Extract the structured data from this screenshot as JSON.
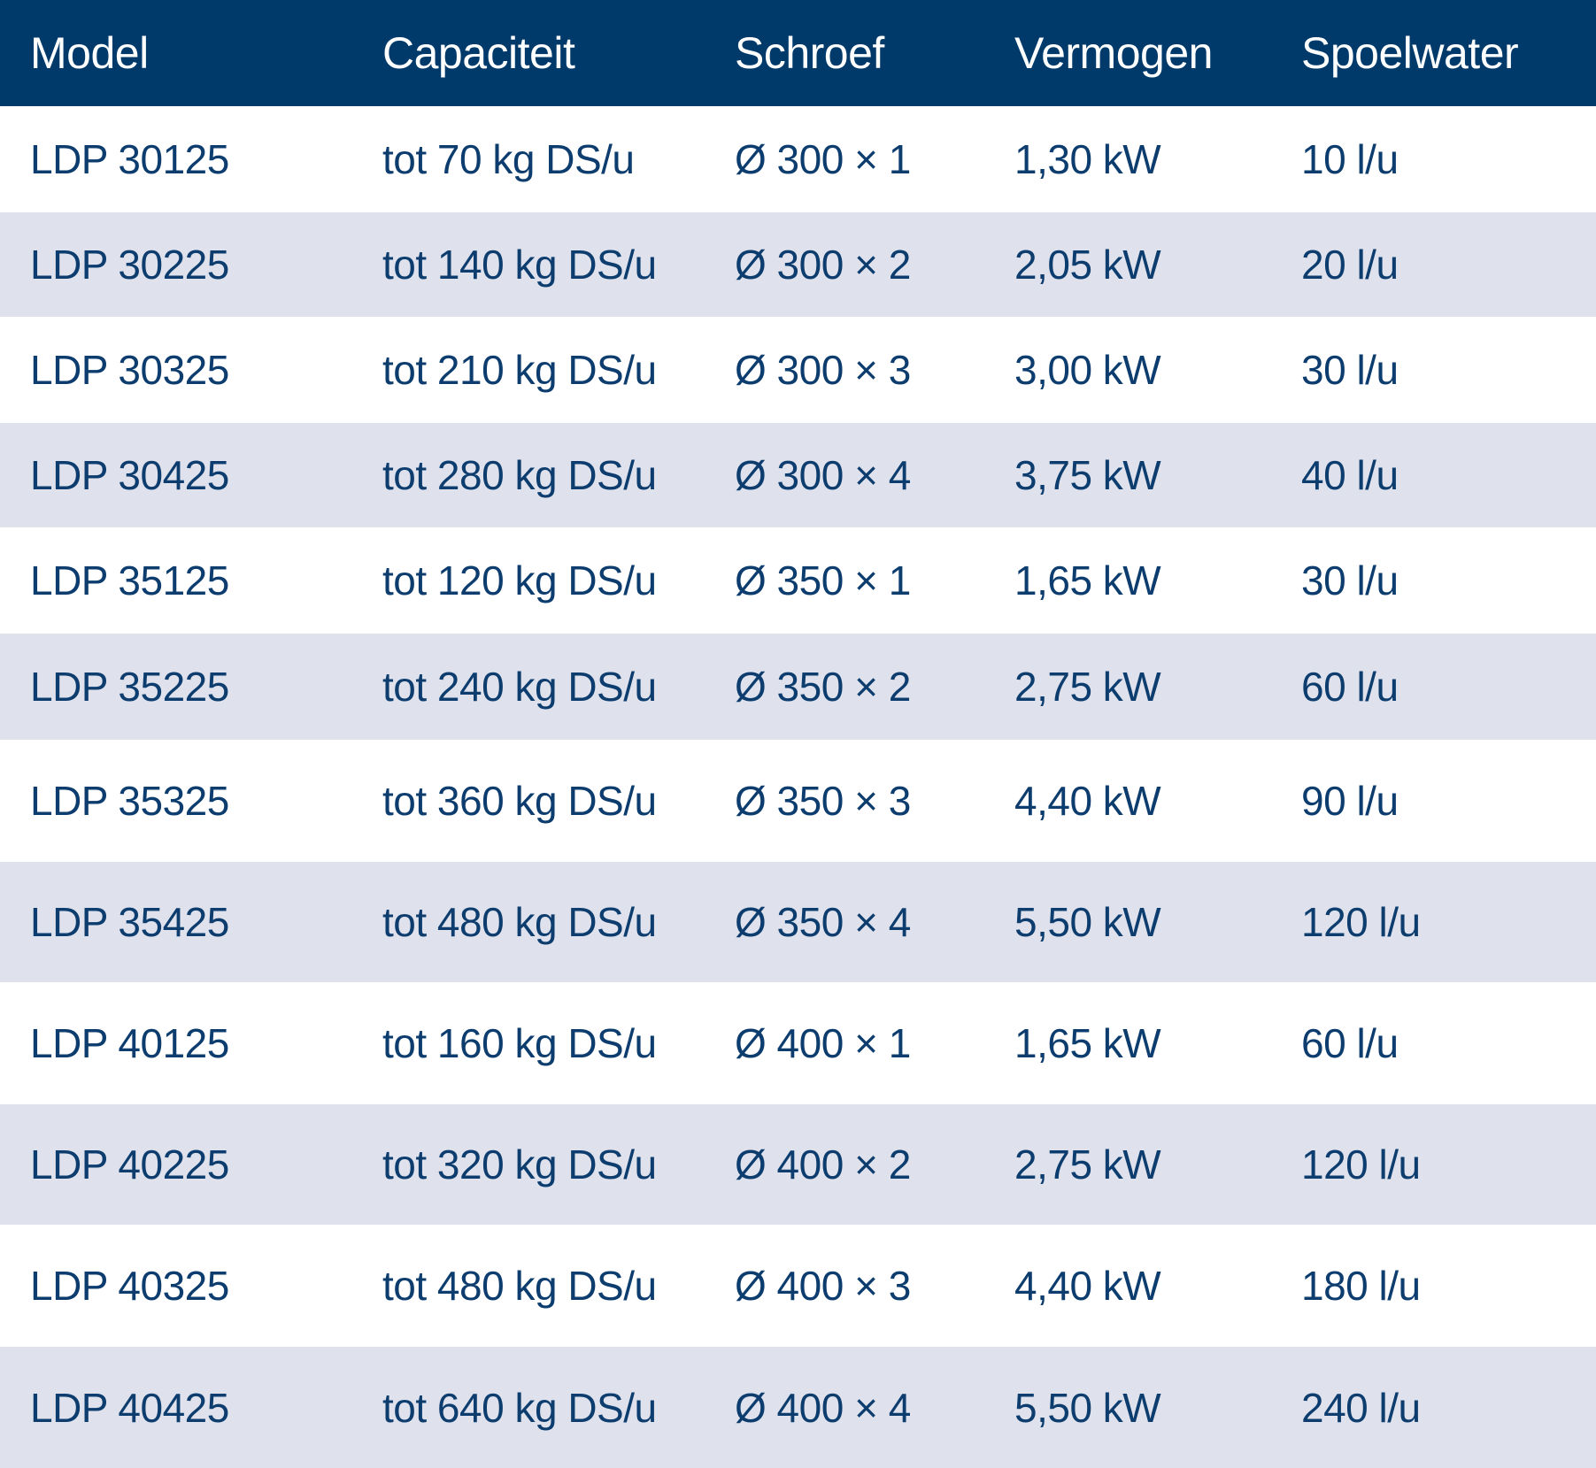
{
  "table": {
    "headers": [
      "Model",
      "Capaciteit",
      "Schroef",
      "Vermogen",
      "Spoelwater"
    ],
    "rows": [
      [
        "LDP 30125",
        "tot 70 kg DS/u",
        "Ø 300 × 1",
        "1,30 kW",
        "10 l/u"
      ],
      [
        "LDP 30225",
        "tot 140 kg DS/u",
        "Ø 300 × 2",
        "2,05 kW",
        "20 l/u"
      ],
      [
        "LDP 30325",
        "tot 210 kg DS/u",
        "Ø 300 × 3",
        "3,00 kW",
        "30 l/u"
      ],
      [
        "LDP 30425",
        "tot 280 kg DS/u",
        "Ø 300 × 4",
        "3,75 kW",
        "40 l/u"
      ],
      [
        "LDP 35125",
        "tot 120 kg DS/u",
        "Ø 350 × 1",
        "1,65 kW",
        "30 l/u"
      ],
      [
        "LDP 35225",
        "tot 240 kg DS/u",
        "Ø 350 × 2",
        "2,75 kW",
        "60 l/u"
      ],
      [
        "LDP 35325",
        "tot 360 kg DS/u",
        "Ø 350 × 3",
        "4,40 kW",
        "90 l/u"
      ],
      [
        "LDP 35425",
        "tot 480 kg DS/u",
        "Ø 350 × 4",
        "5,50 kW",
        "120 l/u"
      ],
      [
        "LDP 40125",
        "tot 160 kg DS/u",
        "Ø 400 × 1",
        "1,65 kW",
        "60 l/u"
      ],
      [
        "LDP 40225",
        "tot 320 kg DS/u",
        "Ø 400 × 2",
        "2,75 kW",
        "120 l/u"
      ],
      [
        "LDP 40325",
        "tot 480 kg DS/u",
        "Ø 400 × 3",
        "4,40 kW",
        "180 l/u"
      ],
      [
        "LDP 40425",
        "tot 640 kg DS/u",
        "Ø 400 × 4",
        "5,50 kW",
        "240 l/u"
      ]
    ]
  },
  "colors": {
    "header_background": "#003a6b",
    "header_text": "#ffffff",
    "body_text": "#0d3d6e",
    "row_shaded": "#dfe2ec",
    "row_plain": "#ffffff"
  }
}
